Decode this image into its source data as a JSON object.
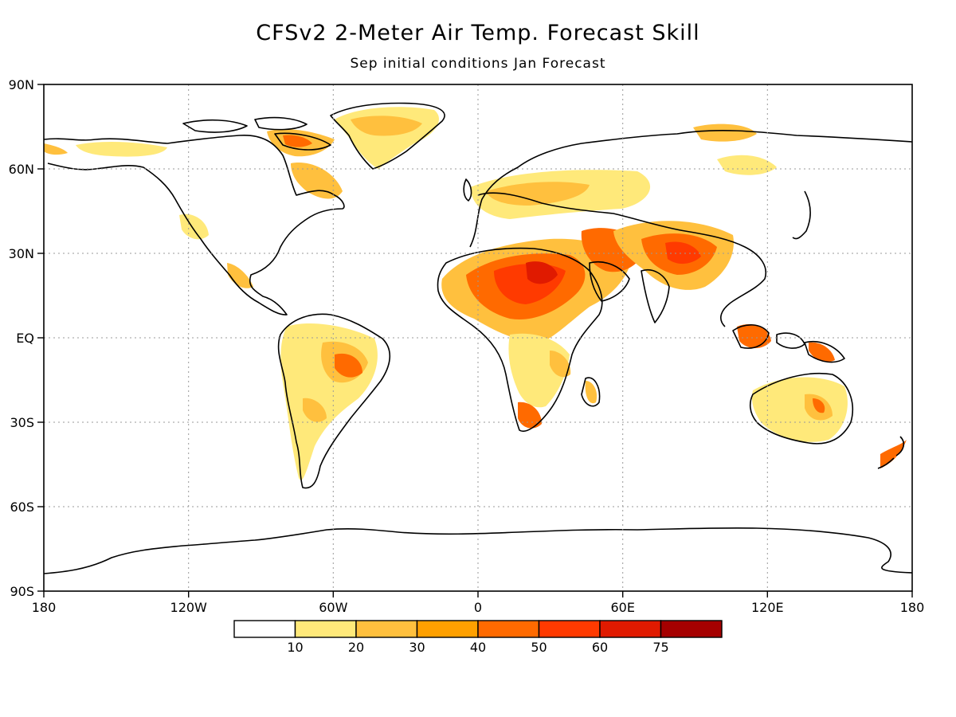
{
  "title": "CFSv2 2-Meter Air Temp. Forecast Skill",
  "subtitle": "Sep initial conditions   Jan Forecast",
  "map": {
    "lon_ticks": [
      "180",
      "120W",
      "60W",
      "0",
      "60E",
      "120E",
      "180"
    ],
    "lat_ticks": [
      "90N",
      "60N",
      "30N",
      "EQ",
      "30S",
      "60S",
      "90S"
    ],
    "grid": true,
    "gridline_style": "dotted"
  },
  "colorbar": {
    "labels": [
      "10",
      "20",
      "30",
      "40",
      "50",
      "60",
      "75"
    ],
    "colors": [
      "#ffffff",
      "#ffe97a",
      "#ffc03e",
      "#ffa000",
      "#ff6a00",
      "#ff3a00",
      "#e01a00",
      "#a50000"
    ]
  }
}
